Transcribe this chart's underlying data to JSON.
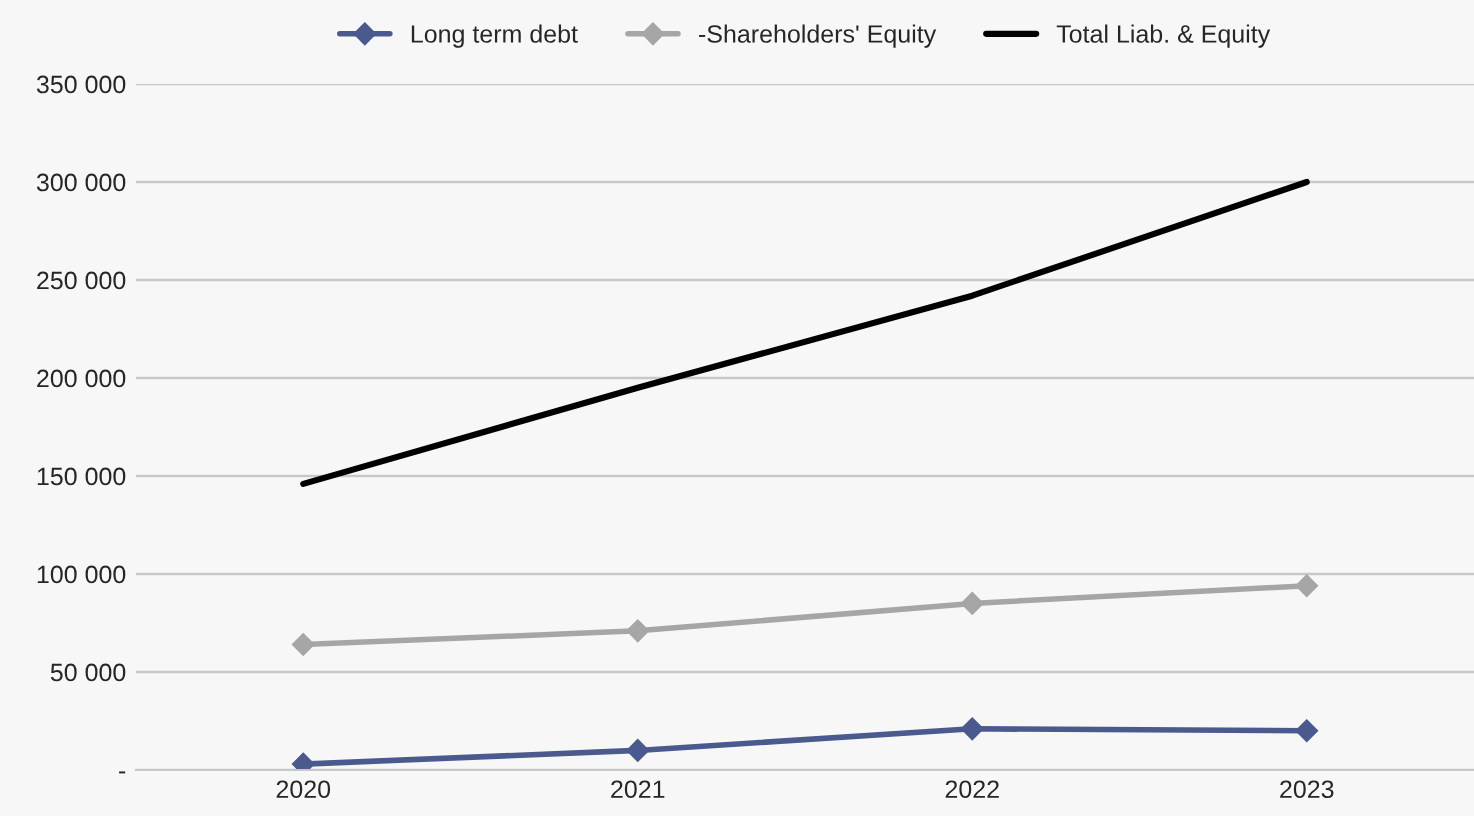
{
  "chart_data": {
    "type": "line",
    "categories": [
      "2020",
      "2021",
      "2022",
      "2023"
    ],
    "series": [
      {
        "name": "Long term debt",
        "color": "#4a5a8f",
        "marker": "diamond",
        "values": [
          3000,
          10000,
          21000,
          20000
        ]
      },
      {
        "name": "-Shareholders' Equity",
        "color": "#a6a6a6",
        "marker": "diamond",
        "values": [
          64000,
          71000,
          85000,
          94000
        ]
      },
      {
        "name": "Total Liab. & Equity",
        "color": "#000000",
        "marker": "none",
        "values": [
          146000,
          195000,
          242000,
          300000
        ]
      }
    ],
    "ylim": [
      0,
      350000
    ],
    "yticks": [
      {
        "value": 0,
        "label": "-"
      },
      {
        "value": 50000,
        "label": "50 000"
      },
      {
        "value": 100000,
        "label": "100 000"
      },
      {
        "value": 150000,
        "label": "150 000"
      },
      {
        "value": 200000,
        "label": "200 000"
      },
      {
        "value": 250000,
        "label": "250 000"
      },
      {
        "value": 300000,
        "label": "300 000"
      },
      {
        "value": 350000,
        "label": "350 000"
      }
    ],
    "grid": "y",
    "legend": "top",
    "line_style": "solid"
  }
}
